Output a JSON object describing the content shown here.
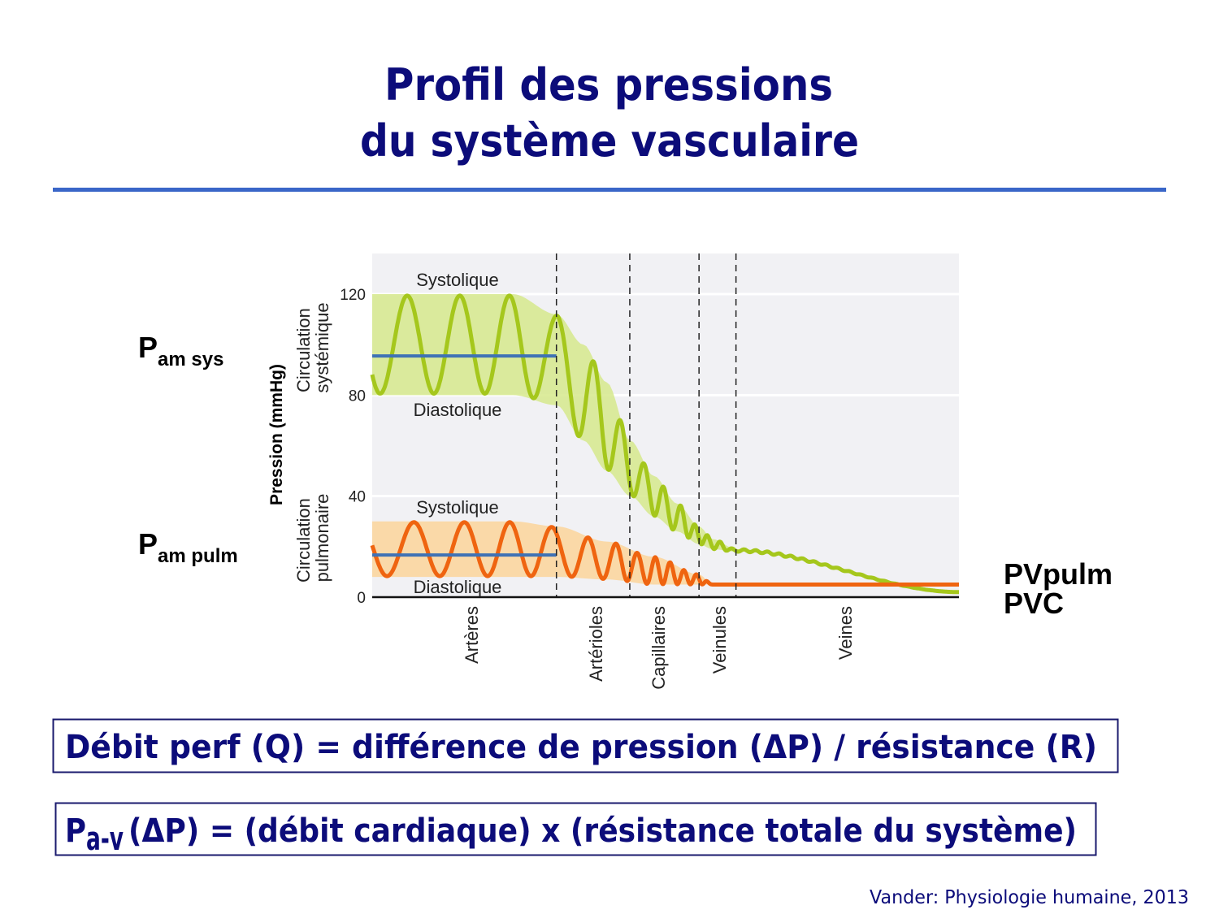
{
  "slide": {
    "title_line1": "Profil des pressions",
    "title_line2": "du système vasculaire",
    "rule_color": "#3a66c8",
    "left_labels": [
      {
        "main": "P",
        "sub": "am sys"
      },
      {
        "main": "P",
        "sub": "am pulm"
      }
    ],
    "right_labels": [
      "PVpulm",
      "PVC"
    ],
    "formula1": "Débit perf  (Q) = différence de pression (ΔP) / résistance (R)",
    "formula2": {
      "main": "P",
      "sub": "a-v",
      "rest": "(ΔP) = (débit cardiaque) x (résistance totale du système)"
    },
    "citation": "Vander: Physiologie humaine, 2013"
  },
  "chart_data": {
    "type": "line",
    "ylabel": "Pression (mmHg)",
    "ylim": [
      0,
      120
    ],
    "yticks": [
      "120",
      "80",
      "40",
      "0"
    ],
    "ytick_values": [
      120,
      80,
      40,
      0
    ],
    "xlim": [
      0,
      100
    ],
    "group_labels": [
      "Circulation systémique",
      "Circulation pulmonaire"
    ],
    "group_label_lines": [
      [
        "Circulation",
        "systémique"
      ],
      [
        "Circulation",
        "pulmonaire"
      ]
    ],
    "segments": [
      {
        "name": "Artères",
        "start": 0,
        "end": 31.4
      },
      {
        "name": "Artérioles",
        "start": 31.4,
        "end": 43.9
      },
      {
        "name": "Capillaires",
        "start": 43.9,
        "end": 55.7
      },
      {
        "name": "Veinules",
        "start": 55.7,
        "end": 62.0
      },
      {
        "name": "Veines",
        "start": 62.0,
        "end": 100
      }
    ],
    "boundaries": [
      31.4,
      43.9,
      55.7,
      62.0
    ],
    "annotations": [
      "Systolique",
      "Diastolique",
      "Systolique",
      "Diastolique"
    ],
    "series": [
      {
        "name": "Circulation systémique",
        "systolic": 120,
        "diastolic": 80,
        "mean_arterial": 95.5,
        "color": "#a5c71c",
        "band_color": "#d6e98c",
        "phase0": 3.8,
        "envelope": [
          [
            0,
            120,
            80
          ],
          [
            24,
            120,
            80
          ],
          [
            31.4,
            112,
            76
          ],
          [
            36,
            100,
            62
          ],
          [
            40,
            85,
            50
          ],
          [
            44,
            62,
            40
          ],
          [
            48,
            48,
            32
          ],
          [
            52,
            37,
            26
          ],
          [
            55.7,
            28,
            21
          ],
          [
            58,
            23,
            19
          ],
          [
            62,
            19,
            18
          ],
          [
            100,
            2,
            2
          ]
        ],
        "period": [
          [
            0,
            9.3
          ],
          [
            31.4,
            8
          ],
          [
            38,
            5
          ],
          [
            44,
            4
          ],
          [
            50,
            3
          ],
          [
            55.7,
            2.2
          ],
          [
            62,
            2
          ],
          [
            100,
            2
          ]
        ]
      },
      {
        "name": "Circulation pulmonaire",
        "systolic": 30,
        "diastolic": 8,
        "mean_arterial": 16.7,
        "color": "#ef6410",
        "band_color": "#fcd59a",
        "phase0": 3.0,
        "envelope": [
          [
            0,
            30,
            8
          ],
          [
            24,
            30,
            8
          ],
          [
            31.4,
            28,
            8
          ],
          [
            40,
            22,
            7
          ],
          [
            48,
            16,
            5
          ],
          [
            55.7,
            9,
            5
          ],
          [
            58,
            5,
            5
          ],
          [
            100,
            5,
            5
          ]
        ],
        "period": [
          [
            0,
            9.3
          ],
          [
            31.4,
            7
          ],
          [
            38,
            5
          ],
          [
            44,
            3.5
          ],
          [
            50,
            2.5
          ],
          [
            55.7,
            2
          ],
          [
            100,
            2
          ]
        ]
      }
    ],
    "mean_line_color": "#3f72b5"
  }
}
